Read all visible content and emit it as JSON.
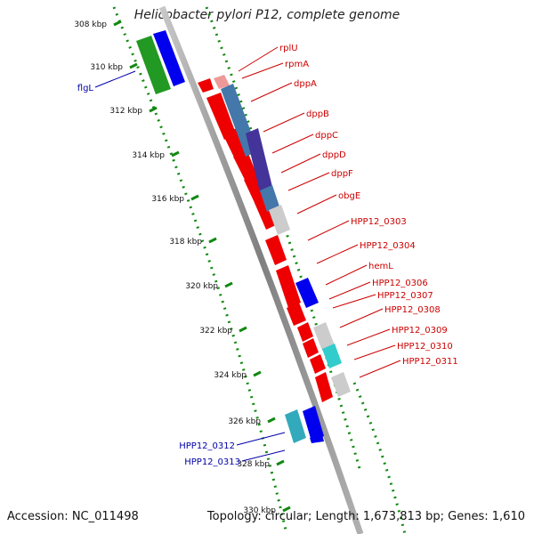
{
  "title": "Helicobacter pylori P12, complete genome",
  "footer": {
    "accession": "Accession: NC_011498",
    "topology": "Topology: circular; Length: 1,673,813 bp; Genes: 1,610"
  },
  "colors": {
    "forward_gene": "#0000ee",
    "reverse_gene": "#ee0000",
    "green_gene": "#229922",
    "backbone": "#999999",
    "kbp_ruler": "#118811",
    "label_blue": "#0000aa",
    "label_red": "#cc0000"
  },
  "scale_ticks": [
    {
      "label": "308 kbp",
      "kbp": 308
    },
    {
      "label": "310 kbp",
      "kbp": 310
    },
    {
      "label": "312 kbp",
      "kbp": 312
    },
    {
      "label": "314 kbp",
      "kbp": 314
    },
    {
      "label": "316 kbp",
      "kbp": 316
    },
    {
      "label": "318 kbp",
      "kbp": 318
    },
    {
      "label": "320 kbp",
      "kbp": 320
    },
    {
      "label": "322 kbp",
      "kbp": 322
    },
    {
      "label": "324 kbp",
      "kbp": 324
    },
    {
      "label": "326 kbp",
      "kbp": 326
    },
    {
      "label": "328 kbp",
      "kbp": 328
    },
    {
      "label": "330 kbp",
      "kbp": 330
    }
  ],
  "genes_left": [
    "flgL",
    "HPP12_0312",
    "HPP12_0313"
  ],
  "genes_right": [
    "rplU",
    "rpmA",
    "dppA",
    "dppB",
    "dppC",
    "dppD",
    "dppF",
    "obgE",
    "HPP12_0303",
    "HPP12_0304",
    "hemL",
    "HPP12_0306",
    "HPP12_0307",
    "HPP12_0308",
    "HPP12_0309",
    "HPP12_0310",
    "HPP12_0311"
  ]
}
